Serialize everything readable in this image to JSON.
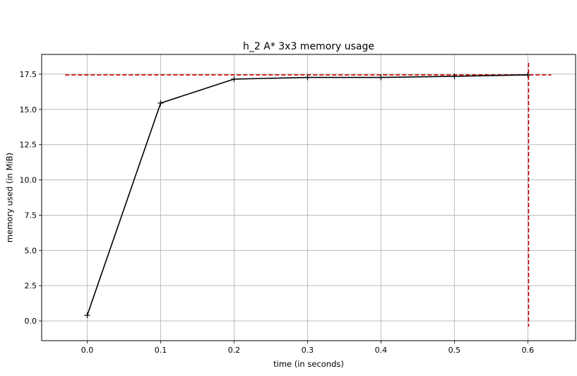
{
  "chart_data": {
    "type": "line",
    "title": "h_2 A* 3x3 memory usage",
    "xlabel": "time (in seconds)",
    "ylabel": "memory used (in MiB)",
    "xlim": [
      -0.062,
      0.665
    ],
    "ylim": [
      -1.4,
      18.9
    ],
    "xticks": [
      0.0,
      0.1,
      0.2,
      0.3,
      0.4,
      0.5,
      0.6
    ],
    "xtick_labels": [
      "0.0",
      "0.1",
      "0.2",
      "0.3",
      "0.4",
      "0.5",
      "0.6"
    ],
    "yticks": [
      0.0,
      2.5,
      5.0,
      7.5,
      10.0,
      12.5,
      15.0,
      17.5
    ],
    "ytick_labels": [
      "0.0",
      "2.5",
      "5.0",
      "7.5",
      "10.0",
      "12.5",
      "15.0",
      "17.5"
    ],
    "grid": true,
    "series": [
      {
        "color": "#000000",
        "marker": "plus",
        "x": [
          0.0,
          0.1,
          0.2,
          0.3,
          0.4,
          0.5,
          0.6
        ],
        "y": [
          0.4,
          15.45,
          17.15,
          17.27,
          17.27,
          17.35,
          17.45
        ]
      }
    ],
    "reference_lines": {
      "color": "#cc0000",
      "style": "dashed",
      "horizontal": {
        "y": 17.45,
        "x_range": [
          -0.03,
          0.632
        ]
      },
      "vertical": {
        "x": 0.601,
        "y_range": [
          -0.4,
          18.3
        ]
      }
    }
  }
}
